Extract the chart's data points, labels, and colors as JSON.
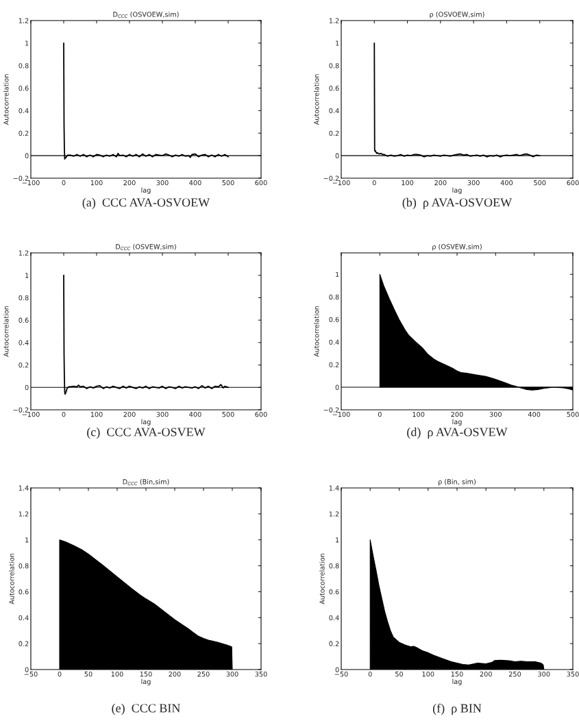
{
  "chart_data": [
    {
      "type": "line",
      "title": "D$_{CCC}$ (OSVOEW,sim)",
      "xlabel": "lag",
      "ylabel": "Autocorrelation",
      "annotations": [
        "(a)  CCC AVA-OSVOEW"
      ],
      "xlim": [
        -100,
        600
      ],
      "ylim": [
        -0.2,
        1.2
      ],
      "xticks": [
        -100,
        0,
        100,
        200,
        300,
        400,
        500,
        600
      ],
      "yticks": [
        -0.2,
        0,
        0.2,
        0.4,
        0.6,
        0.8,
        1,
        1.2
      ],
      "ref_lines": [
        {
          "axis": "y",
          "value": 0,
          "color": "#000000"
        }
      ],
      "series": [
        {
          "color": "#000000",
          "x": [
            0,
            1,
            2,
            3,
            4,
            6,
            8,
            12,
            20,
            30,
            40,
            50,
            60,
            70,
            80,
            90,
            100,
            110,
            120,
            130,
            140,
            150,
            160,
            165,
            170,
            180,
            190,
            200,
            210,
            220,
            230,
            240,
            250,
            260,
            270,
            280,
            290,
            300,
            310,
            320,
            330,
            340,
            350,
            360,
            370,
            380,
            385,
            390,
            400,
            410,
            420,
            430,
            440,
            450,
            460,
            470,
            480,
            490,
            500
          ],
          "values": [
            1,
            0.27,
            0.06,
            -0.03,
            -0.02,
            -0.02,
            -0.01,
            0.005,
            0.005,
            -0.005,
            0.01,
            -0.005,
            0.01,
            -0.01,
            0.005,
            -0.01,
            0.01,
            0.005,
            -0.01,
            0.005,
            -0.005,
            0.01,
            -0.01,
            0.02,
            0.0,
            0.005,
            -0.01,
            0.01,
            -0.005,
            0.01,
            -0.01,
            0.015,
            -0.005,
            0.01,
            -0.01,
            0.01,
            0.005,
            0.0,
            0.015,
            0.005,
            -0.01,
            0.005,
            -0.005,
            0.01,
            -0.005,
            0.0,
            -0.015,
            0.01,
            0.015,
            -0.01,
            0.005,
            0.01,
            -0.01,
            0.005,
            -0.01,
            0.01,
            -0.005,
            0.01,
            -0.01
          ]
        }
      ]
    },
    {
      "type": "line",
      "title": "ρ (OSVOEW,sim)",
      "xlabel": "lag",
      "ylabel": "Autocorrelation",
      "annotations": [
        "(b)  ρ AVA-OSVOEW"
      ],
      "xlim": [
        -100,
        600
      ],
      "ylim": [
        -0.2,
        1.2
      ],
      "xticks": [
        -100,
        0,
        100,
        200,
        300,
        400,
        500,
        600
      ],
      "yticks": [
        -0.2,
        0,
        0.2,
        0.4,
        0.6,
        0.8,
        1,
        1.2
      ],
      "ref_lines": [
        {
          "axis": "y",
          "value": 0,
          "color": "#000000"
        }
      ],
      "series": [
        {
          "color": "#000000",
          "x": [
            0,
            1,
            2,
            3,
            5,
            8,
            10,
            15,
            20,
            25,
            30,
            40,
            50,
            60,
            70,
            80,
            90,
            100,
            110,
            120,
            130,
            140,
            150,
            160,
            170,
            180,
            190,
            200,
            210,
            220,
            230,
            240,
            250,
            260,
            270,
            280,
            290,
            300,
            310,
            320,
            330,
            340,
            350,
            360,
            370,
            380,
            390,
            400,
            410,
            420,
            430,
            440,
            450,
            460,
            470,
            480,
            490,
            500
          ],
          "values": [
            1,
            0.05,
            0.04,
            0.045,
            0.03,
            0.02,
            0.025,
            0.015,
            0.02,
            0.01,
            0.01,
            -0.005,
            0.005,
            -0.005,
            0.0,
            0.01,
            -0.005,
            0.005,
            0.0,
            0.01,
            0.01,
            0.005,
            -0.01,
            0.0,
            -0.005,
            0.005,
            0.0,
            -0.005,
            0.005,
            0.0,
            -0.005,
            0.005,
            0.01,
            0.015,
            0.005,
            0.01,
            -0.005,
            0.0,
            0.005,
            -0.005,
            0.005,
            -0.01,
            0.0,
            -0.005,
            0.005,
            -0.01,
            0.0,
            0.005,
            0.0,
            0.005,
            0.01,
            0.0,
            0.01,
            0.015,
            0.005,
            -0.01,
            0.005,
            0.0
          ]
        }
      ]
    },
    {
      "type": "line",
      "title": "D$_{CCC}$ (OSVEW,sim)",
      "xlabel": "lag",
      "ylabel": "Autocorrelation",
      "annotations": [
        "(c)  CCC AVA-OSVEW"
      ],
      "xlim": [
        -100,
        600
      ],
      "ylim": [
        -0.2,
        1.2
      ],
      "xticks": [
        -100,
        0,
        100,
        200,
        300,
        400,
        500,
        600
      ],
      "yticks": [
        -0.2,
        0,
        0.2,
        0.4,
        0.6,
        0.8,
        1,
        1.2
      ],
      "ref_lines": [
        {
          "axis": "y",
          "value": 0,
          "color": "#000000"
        }
      ],
      "series": [
        {
          "color": "#000000",
          "x": [
            0,
            1,
            2,
            3,
            4,
            6,
            8,
            10,
            15,
            20,
            30,
            40,
            45,
            50,
            60,
            70,
            80,
            90,
            100,
            110,
            120,
            130,
            140,
            150,
            160,
            170,
            180,
            190,
            200,
            210,
            220,
            230,
            240,
            250,
            260,
            270,
            280,
            290,
            300,
            310,
            320,
            330,
            340,
            350,
            360,
            370,
            380,
            390,
            400,
            410,
            420,
            430,
            440,
            450,
            460,
            470,
            478,
            485,
            490,
            500
          ],
          "values": [
            1,
            0.3,
            0.09,
            -0.04,
            -0.06,
            -0.05,
            -0.03,
            -0.01,
            0.005,
            0.005,
            0.01,
            0.005,
            0.02,
            0.005,
            0.01,
            -0.01,
            0.005,
            -0.005,
            0.01,
            0.015,
            -0.01,
            0.005,
            -0.005,
            0.01,
            0.0,
            -0.01,
            0.01,
            -0.005,
            0.01,
            0.0,
            -0.01,
            0.005,
            -0.005,
            0.01,
            -0.01,
            0.005,
            0.0,
            -0.005,
            0.01,
            -0.01,
            0.005,
            0.0,
            -0.01,
            0.01,
            -0.005,
            0.005,
            0.0,
            -0.005,
            0.005,
            -0.01,
            0.015,
            -0.005,
            0.01,
            -0.01,
            0.01,
            0.005,
            0.025,
            -0.005,
            0.01,
            0.0
          ]
        }
      ]
    },
    {
      "type": "area",
      "title": "ρ (OSVEW,sim)",
      "xlabel": "lag",
      "ylabel": "Autocorrelation",
      "annotations": [
        "(d)  ρ AVA-OSVEW"
      ],
      "xlim": [
        -100,
        500
      ],
      "ylim": [
        -0.2,
        1.19
      ],
      "xticks": [
        -100,
        0,
        100,
        200,
        300,
        400,
        500
      ],
      "yticks": [
        -0.2,
        0,
        0.2,
        0.4,
        0.6,
        0.8,
        1
      ],
      "ref_lines": [
        {
          "axis": "y",
          "value": 0,
          "color": "#000000"
        }
      ],
      "series": [
        {
          "color": "#000000",
          "x": [
            0,
            10,
            25,
            40,
            50,
            65,
            75,
            90,
            100,
            110,
            125,
            140,
            150,
            175,
            190,
            200,
            210,
            225,
            250,
            275,
            290,
            300,
            325,
            340,
            350,
            365,
            380,
            395,
            410,
            425,
            450,
            475,
            490,
            500
          ],
          "values": [
            1,
            0.9,
            0.78,
            0.67,
            0.6,
            0.51,
            0.46,
            0.41,
            0.38,
            0.35,
            0.29,
            0.25,
            0.23,
            0.19,
            0.165,
            0.145,
            0.13,
            0.125,
            0.11,
            0.095,
            0.08,
            0.07,
            0.04,
            0.02,
            0.01,
            -0.005,
            -0.02,
            -0.025,
            -0.02,
            -0.01,
            0.0,
            -0.005,
            -0.015,
            -0.025
          ]
        }
      ]
    },
    {
      "type": "area",
      "title": "D$_{CCC}$ (Bin,sim)",
      "xlabel": "lag",
      "ylabel": "Autocorrelation",
      "annotations": [
        "(e)  CCC BIN"
      ],
      "xlim": [
        -50,
        350
      ],
      "ylim": [
        0,
        1.4
      ],
      "xticks": [
        -50,
        0,
        50,
        100,
        150,
        200,
        250,
        300,
        350
      ],
      "yticks": [
        0,
        0.2,
        0.4,
        0.6,
        0.8,
        1,
        1.2,
        1.4
      ],
      "series": [
        {
          "color": "#000000",
          "x": [
            0,
            10,
            25,
            40,
            50,
            75,
            100,
            125,
            140,
            150,
            165,
            175,
            200,
            225,
            240,
            250,
            260,
            275,
            290,
            299,
            300
          ],
          "values": [
            1,
            0.985,
            0.955,
            0.92,
            0.89,
            0.805,
            0.715,
            0.625,
            0.575,
            0.545,
            0.505,
            0.47,
            0.385,
            0.31,
            0.26,
            0.24,
            0.225,
            0.21,
            0.19,
            0.175,
            0.0
          ]
        }
      ]
    },
    {
      "type": "area",
      "title": "ρ (Bin, sim)",
      "xlabel": "lag",
      "ylabel": "Autocorrelation",
      "annotations": [
        "(f)  ρ BIN"
      ],
      "xlim": [
        -50,
        350
      ],
      "ylim": [
        0,
        1.4
      ],
      "xticks": [
        -50,
        0,
        50,
        100,
        150,
        200,
        250,
        300,
        350
      ],
      "yticks": [
        0,
        0.2,
        0.4,
        0.6,
        0.8,
        1,
        1.2,
        1.4
      ],
      "series": [
        {
          "color": "#000000",
          "x": [
            0,
            5,
            10,
            15,
            20,
            25,
            30,
            35,
            40,
            50,
            60,
            70,
            75,
            80,
            90,
            100,
            110,
            125,
            140,
            150,
            160,
            170,
            180,
            185,
            200,
            210,
            215,
            225,
            240,
            250,
            260,
            270,
            285,
            295,
            299,
            300
          ],
          "values": [
            1,
            0.88,
            0.77,
            0.65,
            0.55,
            0.45,
            0.37,
            0.3,
            0.25,
            0.21,
            0.19,
            0.175,
            0.18,
            0.17,
            0.145,
            0.13,
            0.11,
            0.085,
            0.06,
            0.05,
            0.04,
            0.035,
            0.045,
            0.05,
            0.045,
            0.055,
            0.07,
            0.072,
            0.068,
            0.06,
            0.065,
            0.06,
            0.06,
            0.05,
            0.035,
            0.0
          ]
        }
      ]
    }
  ]
}
